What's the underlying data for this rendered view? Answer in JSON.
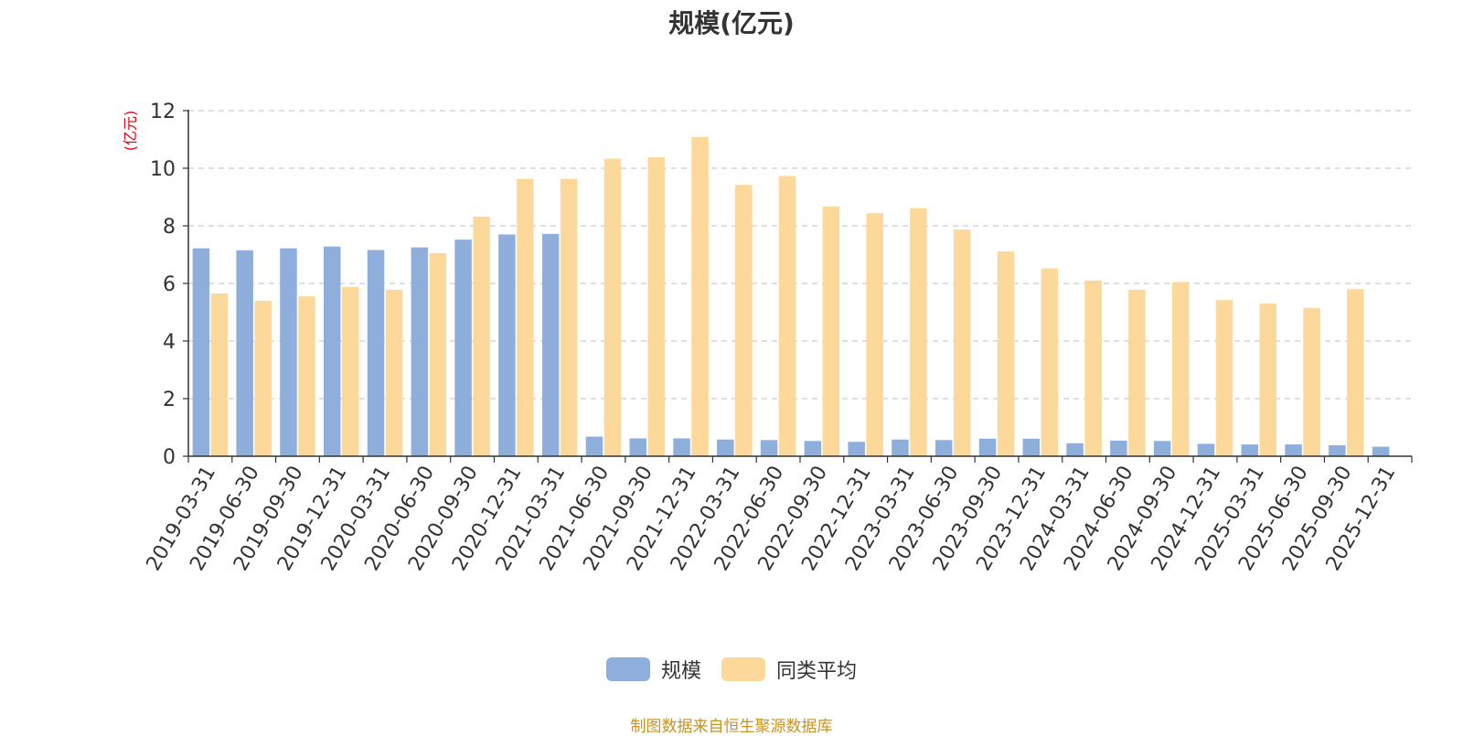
{
  "chart_data": {
    "type": "bar",
    "title": "规模(亿元)",
    "ylabel": "(亿元)",
    "xlabel": "",
    "ylim": [
      0,
      12
    ],
    "yticks": [
      0,
      2,
      4,
      6,
      8,
      10,
      12
    ],
    "grid": true,
    "legend_position": "bottom-center",
    "categories": [
      "2019-03-31",
      "2019-06-30",
      "2019-09-30",
      "2019-12-31",
      "2020-03-31",
      "2020-06-30",
      "2020-09-30",
      "2020-12-31",
      "2021-03-31",
      "2021-06-30",
      "2021-09-30",
      "2021-12-31",
      "2022-03-31",
      "2022-06-30",
      "2022-09-30",
      "2022-12-31",
      "2023-03-31",
      "2023-06-30",
      "2023-09-30",
      "2023-12-31",
      "2024-03-31",
      "2024-06-30",
      "2024-09-30",
      "2024-12-31",
      "2025-03-31",
      "2025-06-30",
      "2025-09-30",
      "2025-12-31"
    ],
    "series": [
      {
        "name": "规模",
        "color": "#8eaedb",
        "values": [
          7.22,
          7.15,
          7.22,
          7.28,
          7.16,
          7.25,
          7.52,
          7.7,
          7.72,
          0.68,
          0.62,
          0.62,
          0.58,
          0.56,
          0.53,
          0.5,
          0.58,
          0.56,
          0.61,
          0.61,
          0.45,
          0.54,
          0.53,
          0.43,
          0.41,
          0.41,
          0.38,
          0.33
        ]
      },
      {
        "name": "同类平均",
        "color": "#fdd89b",
        "values": [
          5.65,
          5.4,
          5.55,
          5.88,
          5.78,
          7.05,
          8.32,
          9.63,
          9.63,
          10.33,
          10.38,
          11.08,
          9.42,
          9.73,
          8.67,
          8.44,
          8.61,
          7.87,
          7.11,
          6.52,
          6.1,
          5.78,
          6.05,
          5.42,
          5.3,
          5.15,
          5.8,
          null
        ]
      }
    ]
  },
  "footer": {
    "source_text": "制图数据来自恒生聚源数据库"
  }
}
